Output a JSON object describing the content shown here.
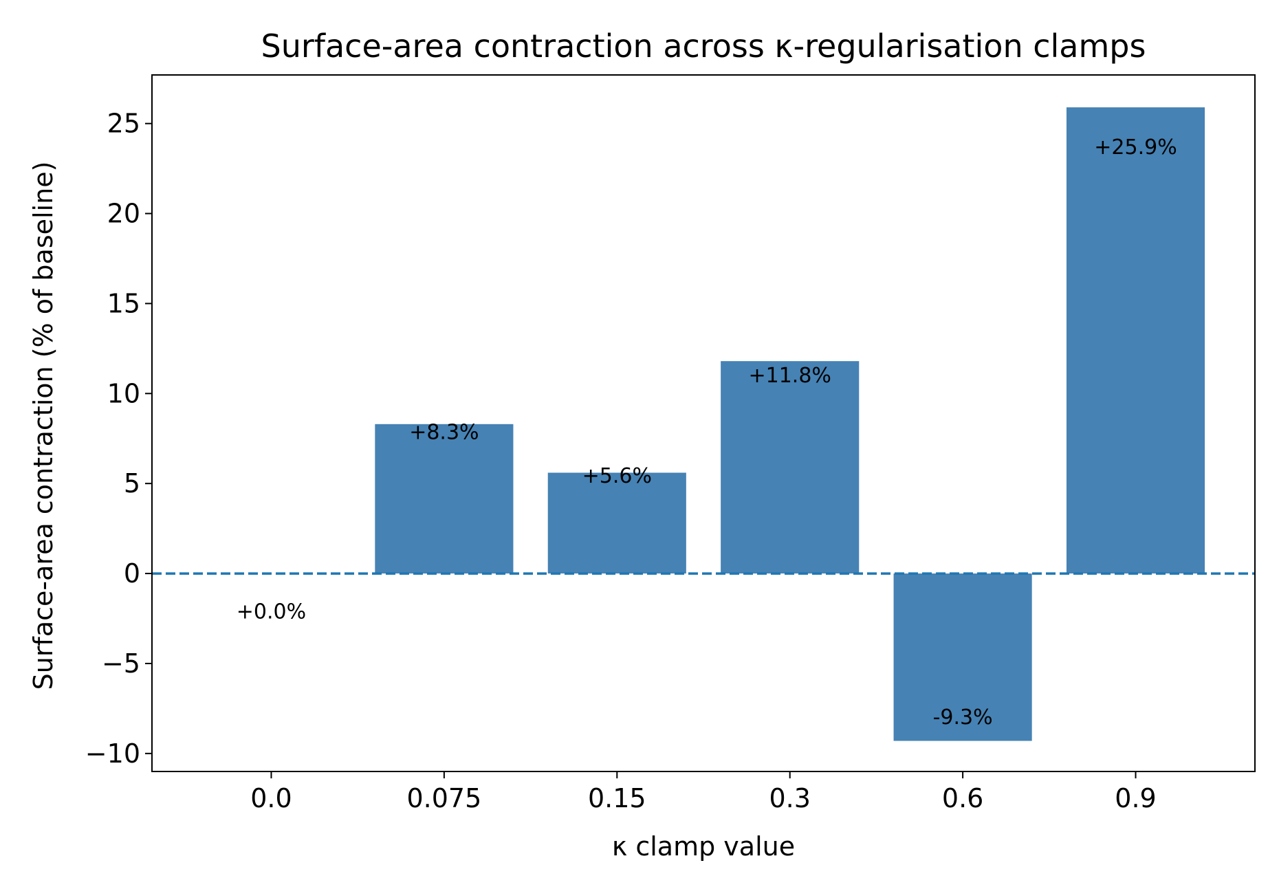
{
  "chart_data": {
    "type": "bar",
    "title": "Surface-area contraction across κ-regularisation clamps",
    "xlabel": "κ clamp value",
    "ylabel": "Surface-area contraction  (% of baseline)",
    "categories": [
      "0.0",
      "0.075",
      "0.15",
      "0.3",
      "0.6",
      "0.9"
    ],
    "values": [
      0.0,
      8.3,
      5.6,
      11.8,
      -9.3,
      25.9
    ],
    "data_labels": [
      "+0.0%",
      "+8.3%",
      "+5.6%",
      "+11.8%",
      "-9.3%",
      "+25.9%"
    ],
    "ylim": [
      -11.0,
      27.7
    ],
    "yticks": [
      -10,
      -5,
      0,
      5,
      10,
      15,
      20,
      25
    ],
    "ytick_labels": [
      "−10",
      "−5",
      "0",
      "5",
      "10",
      "15",
      "20",
      "25"
    ],
    "bar_color": "#4682b4",
    "reference_line": {
      "y": 0,
      "style": "dashed",
      "color": "#1f77b4"
    },
    "grid": false,
    "legend": "none"
  }
}
